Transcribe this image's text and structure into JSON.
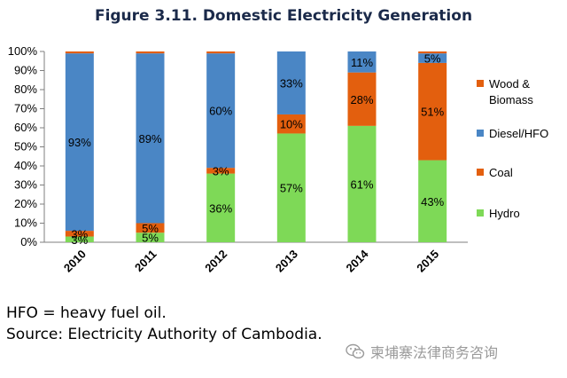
{
  "chart_data": {
    "type": "bar",
    "stacked": true,
    "title": "Figure 3.11. Domestic Electricity Generation",
    "categories": [
      "2010",
      "2011",
      "2012",
      "2013",
      "2014",
      "2015"
    ],
    "ylim": [
      0,
      100
    ],
    "yticks": [
      "0%",
      "10%",
      "20%",
      "30%",
      "40%",
      "50%",
      "60%",
      "70%",
      "80%",
      "90%",
      "100%"
    ],
    "legend_position": "right",
    "series": [
      {
        "name": "Hydro",
        "color": "#7ed957",
        "values": [
          3,
          5,
          36,
          57,
          61,
          43
        ],
        "labels": [
          "3%",
          "5%",
          "36%",
          "57%",
          "61%",
          "43%"
        ]
      },
      {
        "name": "Coal",
        "color": "#e35f0e",
        "values": [
          3,
          5,
          3,
          10,
          28,
          51
        ],
        "labels": [
          "3%",
          "5%",
          "3%",
          "10%",
          "28%",
          "51%"
        ]
      },
      {
        "name": "Diesel/HFO",
        "color": "#4a86c5",
        "values": [
          93,
          89,
          60,
          33,
          11,
          5
        ],
        "labels": [
          "93%",
          "89%",
          "60%",
          "33%",
          "11%",
          "5%"
        ]
      },
      {
        "name": "Wood & Biomass",
        "color": "#e35f0e",
        "values": [
          1,
          1,
          1,
          0,
          0,
          1
        ],
        "labels": [
          "",
          "",
          "",
          "",
          "",
          ""
        ]
      }
    ],
    "legend": [
      {
        "lines": [
          "Wood &",
          "Biomass"
        ],
        "color": "#e35f0e"
      },
      {
        "lines": [
          "Diesel/HFO"
        ],
        "color": "#4a86c5"
      },
      {
        "lines": [
          "Coal"
        ],
        "color": "#e35f0e"
      },
      {
        "lines": [
          "Hydro"
        ],
        "color": "#7ed957"
      }
    ]
  },
  "notes": {
    "line1": "HFO = heavy fuel oil.",
    "line2": "Source: Electricity Authority of Cambodia."
  },
  "watermark": {
    "text": "柬埔寨法律商务咨询",
    "icon": "wechat-icon"
  }
}
